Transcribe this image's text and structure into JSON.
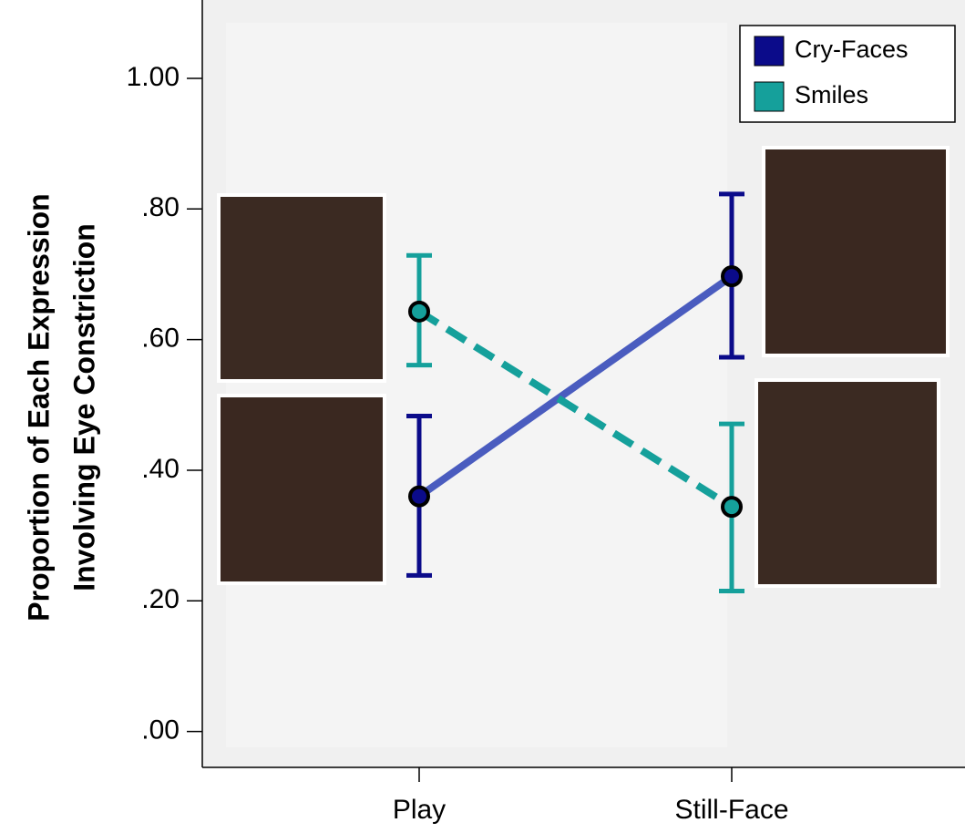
{
  "chart_data": {
    "type": "line",
    "ylabel": [
      "Proportion of Each Expression",
      "Involving Eye Constriction"
    ],
    "categories": [
      "Play",
      "Still-Face"
    ],
    "series": [
      {
        "name": "Cry-Faces",
        "color": "#0b0b8a",
        "line_color": "#4a5cbf",
        "line_style": "solid",
        "values": [
          0.36,
          0.697
        ],
        "ci_lower": [
          0.239,
          0.573
        ],
        "ci_upper": [
          0.483,
          0.823
        ]
      },
      {
        "name": "Smiles",
        "color": "#15a09b",
        "line_color": "#15a09b",
        "line_style": "dashed",
        "values": [
          0.643,
          0.344
        ],
        "ci_lower": [
          0.561,
          0.215
        ],
        "ci_upper": [
          0.729,
          0.471
        ]
      }
    ],
    "ylim": [
      -0.055,
      1.12
    ],
    "yticks": [
      {
        "value": 0,
        "label": ".00"
      },
      {
        "value": 0.2,
        "label": ".20"
      },
      {
        "value": 0.4,
        "label": ".40"
      },
      {
        "value": 0.6,
        "label": ".60"
      },
      {
        "value": 0.8,
        "label": ".80"
      },
      {
        "value": 1,
        "label": "1.00"
      }
    ],
    "legend": "upper right"
  }
}
